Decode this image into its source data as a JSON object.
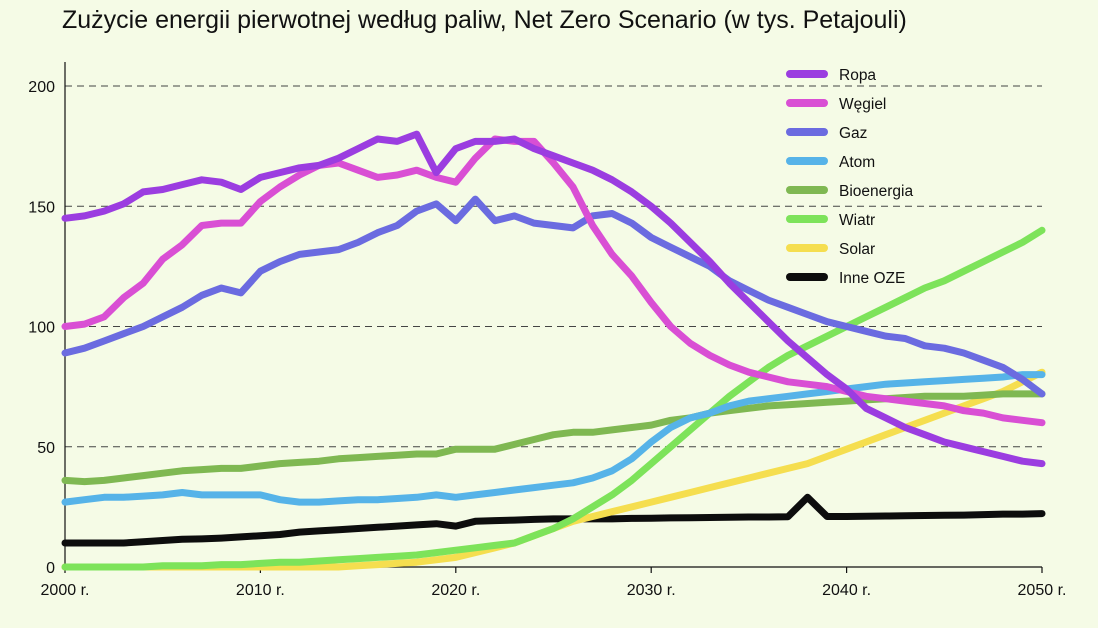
{
  "chart_data": {
    "type": "line",
    "title": "Zużycie energii pierwotnej według paliw, Net Zero Scenario (w tys. Petajouli)",
    "xlabel": "",
    "ylabel": "",
    "xlim": [
      2000,
      2050
    ],
    "ylim": [
      0,
      210
    ],
    "y_ticks": [
      0,
      50,
      100,
      150,
      200
    ],
    "x_ticks": [
      2000,
      2010,
      2020,
      2030,
      2040,
      2050
    ],
    "x_tick_labels": [
      "2000 r.",
      "2010 r.",
      "2020 r.",
      "2030 r.",
      "2040 r.",
      "2050 r."
    ],
    "grid": "horizontal dashed",
    "legend_position": "top-right",
    "series": [
      {
        "name": "Ropa",
        "color": "#9b3de0",
        "x": [
          2000,
          2001,
          2002,
          2003,
          2004,
          2005,
          2006,
          2007,
          2008,
          2009,
          2010,
          2011,
          2012,
          2013,
          2014,
          2015,
          2016,
          2017,
          2018,
          2019,
          2020,
          2021,
          2022,
          2023,
          2024,
          2025,
          2026,
          2027,
          2028,
          2029,
          2030,
          2031,
          2032,
          2033,
          2034,
          2035,
          2036,
          2037,
          2038,
          2039,
          2040,
          2041,
          2042,
          2043,
          2044,
          2045,
          2046,
          2047,
          2048,
          2049,
          2050
        ],
        "values": [
          145,
          146,
          148,
          151,
          156,
          157,
          159,
          161,
          160,
          157,
          162,
          164,
          166,
          167,
          170,
          174,
          178,
          177,
          180,
          164,
          174,
          177,
          177,
          178,
          174,
          171,
          168,
          165,
          161,
          156,
          150,
          143,
          135,
          127,
          118,
          110,
          102,
          94,
          87,
          80,
          74,
          66,
          62,
          58,
          55,
          52,
          50,
          48,
          46,
          44,
          43
        ]
      },
      {
        "name": "Węgiel",
        "color": "#d94fd4",
        "x": [
          2000,
          2001,
          2002,
          2003,
          2004,
          2005,
          2006,
          2007,
          2008,
          2009,
          2010,
          2011,
          2012,
          2013,
          2014,
          2015,
          2016,
          2017,
          2018,
          2019,
          2020,
          2021,
          2022,
          2023,
          2024,
          2025,
          2026,
          2027,
          2028,
          2029,
          2030,
          2031,
          2032,
          2033,
          2034,
          2035,
          2036,
          2037,
          2038,
          2039,
          2040,
          2041,
          2042,
          2043,
          2044,
          2045,
          2046,
          2047,
          2048,
          2049,
          2050
        ],
        "values": [
          100,
          101,
          104,
          112,
          118,
          128,
          134,
          142,
          143,
          143,
          152,
          158,
          163,
          167,
          168,
          165,
          162,
          163,
          165,
          162,
          160,
          170,
          178,
          177,
          177,
          168,
          158,
          142,
          130,
          121,
          110,
          100,
          93,
          88,
          84,
          81,
          79,
          77,
          76,
          75,
          73,
          71,
          70,
          69,
          68,
          67,
          65,
          64,
          62,
          61,
          60
        ]
      },
      {
        "name": "Gaz",
        "color": "#6b6be0",
        "x": [
          2000,
          2001,
          2002,
          2003,
          2004,
          2005,
          2006,
          2007,
          2008,
          2009,
          2010,
          2011,
          2012,
          2013,
          2014,
          2015,
          2016,
          2017,
          2018,
          2019,
          2020,
          2021,
          2022,
          2023,
          2024,
          2025,
          2026,
          2027,
          2028,
          2029,
          2030,
          2031,
          2032,
          2033,
          2034,
          2035,
          2036,
          2037,
          2038,
          2039,
          2040,
          2041,
          2042,
          2043,
          2044,
          2045,
          2046,
          2047,
          2048,
          2049,
          2050
        ],
        "values": [
          89,
          91,
          94,
          97,
          100,
          104,
          108,
          113,
          116,
          114,
          123,
          127,
          130,
          131,
          132,
          135,
          139,
          142,
          148,
          151,
          144,
          153,
          144,
          146,
          143,
          142,
          141,
          146,
          147,
          143,
          137,
          133,
          129,
          125,
          119,
          115,
          111,
          108,
          105,
          102,
          100,
          98,
          96,
          95,
          92,
          91,
          89,
          86,
          83,
          78,
          72
        ]
      },
      {
        "name": "Atom",
        "color": "#56b3e8",
        "x": [
          2000,
          2001,
          2002,
          2003,
          2004,
          2005,
          2006,
          2007,
          2008,
          2009,
          2010,
          2011,
          2012,
          2013,
          2014,
          2015,
          2016,
          2017,
          2018,
          2019,
          2020,
          2021,
          2022,
          2023,
          2024,
          2025,
          2026,
          2027,
          2028,
          2029,
          2030,
          2031,
          2032,
          2033,
          2034,
          2035,
          2036,
          2037,
          2038,
          2039,
          2040,
          2041,
          2042,
          2043,
          2044,
          2045,
          2046,
          2047,
          2048,
          2049,
          2050
        ],
        "values": [
          27,
          28,
          29,
          29,
          29.5,
          30,
          31,
          30,
          30,
          30,
          30,
          28,
          27,
          27,
          27.5,
          28,
          28,
          28.5,
          29,
          30,
          29,
          30,
          31,
          32,
          33,
          34,
          35,
          37,
          40,
          45,
          52,
          58,
          62,
          64,
          67,
          69,
          70,
          71,
          72,
          73,
          74,
          75,
          76,
          76.5,
          77,
          77.5,
          78,
          78.5,
          79,
          80,
          80
        ]
      },
      {
        "name": "Bioenergia",
        "color": "#7fb852",
        "x": [
          2000,
          2001,
          2002,
          2003,
          2004,
          2005,
          2006,
          2007,
          2008,
          2009,
          2010,
          2011,
          2012,
          2013,
          2014,
          2015,
          2016,
          2017,
          2018,
          2019,
          2020,
          2021,
          2022,
          2023,
          2024,
          2025,
          2026,
          2027,
          2028,
          2029,
          2030,
          2031,
          2032,
          2033,
          2034,
          2035,
          2036,
          2037,
          2038,
          2039,
          2040,
          2041,
          2042,
          2043,
          2044,
          2045,
          2046,
          2047,
          2048,
          2049,
          2050
        ],
        "values": [
          36,
          35.5,
          36,
          37,
          38,
          39,
          40,
          40.5,
          41,
          41,
          42,
          43,
          43.5,
          44,
          45,
          45.5,
          46,
          46.5,
          47,
          47,
          49,
          49,
          49,
          51,
          53,
          55,
          56,
          56,
          57,
          58,
          59,
          61,
          62,
          64,
          65,
          66,
          67,
          67.5,
          68,
          68.5,
          69,
          69.5,
          70,
          70.5,
          71,
          71,
          71,
          71.5,
          72,
          72,
          72
        ]
      },
      {
        "name": "Wiatr",
        "color": "#7de35a",
        "x": [
          2000,
          2001,
          2002,
          2003,
          2004,
          2005,
          2006,
          2007,
          2008,
          2009,
          2010,
          2011,
          2012,
          2013,
          2014,
          2015,
          2016,
          2017,
          2018,
          2019,
          2020,
          2021,
          2022,
          2023,
          2024,
          2025,
          2026,
          2027,
          2028,
          2029,
          2030,
          2031,
          2032,
          2033,
          2034,
          2035,
          2036,
          2037,
          2038,
          2039,
          2040,
          2041,
          2042,
          2043,
          2044,
          2045,
          2046,
          2047,
          2048,
          2049,
          2050
        ],
        "values": [
          0,
          0,
          0,
          0,
          0,
          0.5,
          0.5,
          0.5,
          1,
          1,
          1.5,
          2,
          2,
          2.5,
          3,
          3.5,
          4,
          4.5,
          5,
          6,
          7,
          8,
          9,
          10,
          13,
          16,
          20,
          25,
          30,
          36,
          43,
          50,
          57,
          64,
          71,
          77,
          83,
          88,
          92,
          96,
          100,
          104,
          108,
          112,
          116,
          119,
          123,
          127,
          131,
          135,
          140
        ]
      },
      {
        "name": "Solar",
        "color": "#f5de4f",
        "x": [
          2000,
          2001,
          2002,
          2003,
          2004,
          2005,
          2006,
          2007,
          2008,
          2009,
          2010,
          2011,
          2012,
          2013,
          2014,
          2015,
          2016,
          2017,
          2018,
          2019,
          2020,
          2021,
          2022,
          2023,
          2024,
          2025,
          2026,
          2027,
          2028,
          2029,
          2030,
          2031,
          2032,
          2033,
          2034,
          2035,
          2036,
          2037,
          2038,
          2039,
          2040,
          2041,
          2042,
          2043,
          2044,
          2045,
          2046,
          2047,
          2048,
          2049,
          2050
        ],
        "values": [
          0,
          0,
          0,
          0,
          0,
          0,
          0,
          0,
          0,
          0,
          0,
          0,
          0,
          0,
          0,
          0.5,
          1,
          1.5,
          2,
          3,
          4,
          6,
          8,
          10,
          13,
          16,
          19,
          21,
          23,
          25,
          27,
          29,
          31,
          33,
          35,
          37,
          39,
          41,
          43,
          46,
          49,
          52,
          55,
          58,
          61,
          64,
          67,
          70,
          73,
          77,
          81
        ]
      },
      {
        "name": "Inne OZE",
        "color": "#0d0d0d",
        "x": [
          2000,
          2001,
          2002,
          2003,
          2004,
          2005,
          2006,
          2007,
          2008,
          2009,
          2010,
          2011,
          2012,
          2013,
          2014,
          2015,
          2016,
          2017,
          2018,
          2019,
          2020,
          2021,
          2022,
          2023,
          2024,
          2025,
          2026,
          2027,
          2028,
          2029,
          2030,
          2031,
          2032,
          2033,
          2034,
          2035,
          2036,
          2037,
          2038,
          2039,
          2040,
          2041,
          2042,
          2043,
          2044,
          2045,
          2046,
          2047,
          2048,
          2049,
          2050
        ],
        "values": [
          10,
          10,
          10,
          10,
          10.5,
          11,
          11.5,
          11.7,
          12,
          12.5,
          13,
          13.5,
          14.5,
          15,
          15.5,
          16,
          16.5,
          17,
          17.5,
          18,
          17,
          19,
          19.3,
          19.5,
          19.8,
          20,
          20,
          20,
          20,
          20.2,
          20.3,
          20.4,
          20.5,
          20.6,
          20.7,
          20.8,
          20.8,
          20.9,
          29,
          21,
          21,
          21.1,
          21.2,
          21.3,
          21.4,
          21.5,
          21.6,
          21.8,
          22,
          22,
          22.2
        ]
      }
    ]
  }
}
